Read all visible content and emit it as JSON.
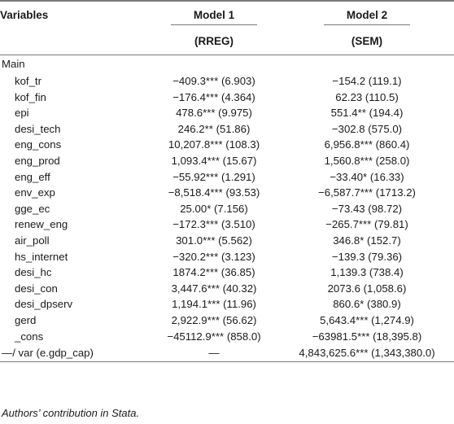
{
  "header": {
    "variables": "Variables",
    "model1": "Model 1",
    "model2": "Model 2",
    "model1_method": "(RREG)",
    "model2_method": "(SEM)"
  },
  "section_label": "Main",
  "rows": [
    {
      "var": "kof_tr",
      "m1": "−409.3*** (6.903)",
      "m2": "−154.2 (119.1)"
    },
    {
      "var": "kof_fin",
      "m1": "−176.4*** (4.364)",
      "m2": "62.23 (110.5)"
    },
    {
      "var": "epi",
      "m1": "478.6*** (9.975)",
      "m2": "551.4** (194.4)"
    },
    {
      "var": "desi_tech",
      "m1": "246.2** (51.86)",
      "m2": "−302.8 (575.0)"
    },
    {
      "var": "eng_cons",
      "m1": "10,207.8*** (108.3)",
      "m2": "6,956.8*** (860.4)"
    },
    {
      "var": "eng_prod",
      "m1": "1,093.4*** (15.67)",
      "m2": "1,560.8*** (258.0)"
    },
    {
      "var": "eng_eff",
      "m1": "−55.92*** (1.291)",
      "m2": "−33.40* (16.33)"
    },
    {
      "var": "env_exp",
      "m1": "−8,518.4*** (93.53)",
      "m2": "−6,587.7*** (1713.2)"
    },
    {
      "var": "gge_ec",
      "m1": "25.00* (7.156)",
      "m2": "−73.43 (98.72)"
    },
    {
      "var": "renew_eng",
      "m1": "−172.3*** (3.510)",
      "m2": "−265.7*** (79.81)"
    },
    {
      "var": "air_poll",
      "m1": "301.0*** (5.562)",
      "m2": "346.8* (152.7)"
    },
    {
      "var": "hs_internet",
      "m1": "−320.2*** (3.123)",
      "m2": "−139.3 (79.36)"
    },
    {
      "var": "desi_hc",
      "m1": "1874.2*** (36.85)",
      "m2": "1,139.3 (738.4)"
    },
    {
      "var": "desi_con",
      "m1": "3,447.6*** (40.32)",
      "m2": "2073.6 (1,058.6)"
    },
    {
      "var": "desi_dpserv",
      "m1": "1,194.1*** (11.96)",
      "m2": "860.6* (380.9)"
    },
    {
      "var": "gerd",
      "m1": "2,922.9*** (56.62)",
      "m2": "5,643.4*** (1,274.9)"
    },
    {
      "var": "_cons",
      "m1": "−45112.9*** (858.0)",
      "m2": "−63981.5*** (18,395.8)"
    },
    {
      "var": "—/   var (e.gdp_cap)",
      "m1": "—",
      "m2": "4,843,625.6*** (1,343,380.0)"
    }
  ],
  "footnote": "Authors’ contribution in Stata."
}
